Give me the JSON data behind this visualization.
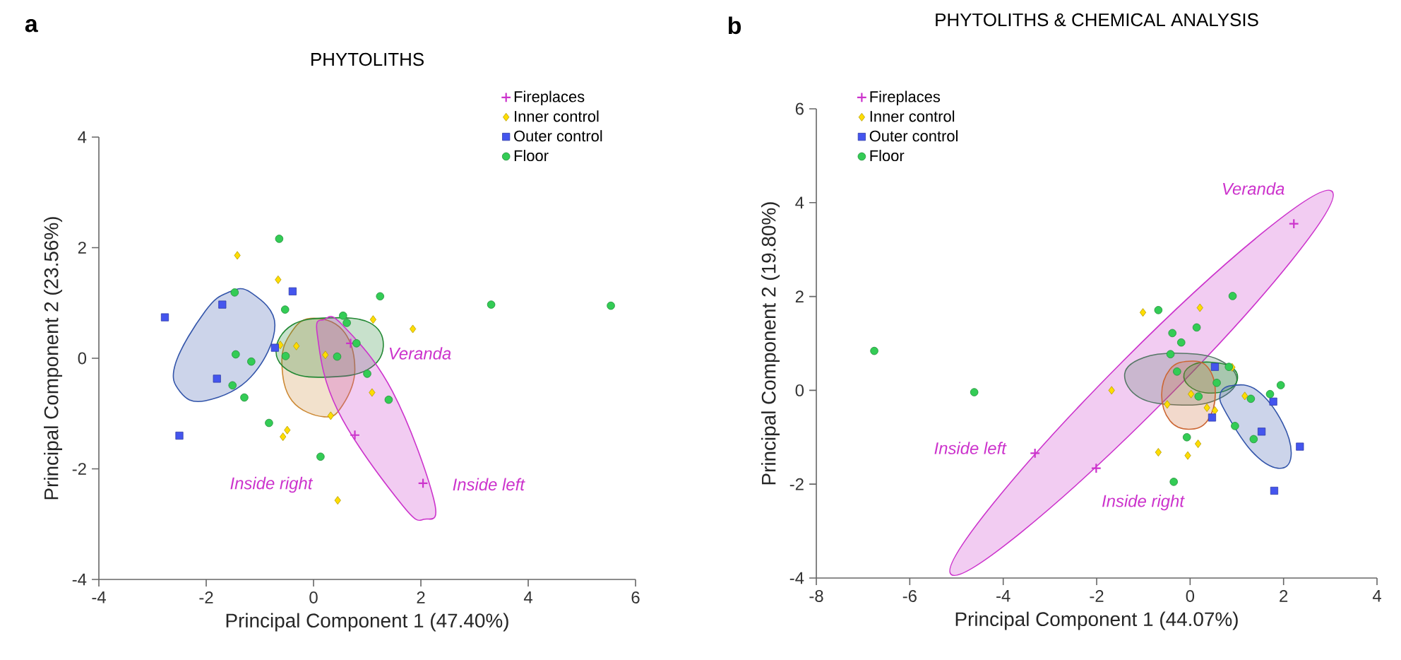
{
  "chart_data": [
    {
      "type": "scatter",
      "title": "PHYTOLITHS",
      "xlabel": "Principal Component 1  (47.40%)",
      "ylabel": "Principal Component 2 (23.56%)",
      "xlim": [
        -4,
        6
      ],
      "ylim": [
        -4,
        4
      ],
      "xticks": [
        -4,
        -2,
        0,
        2,
        4,
        6
      ],
      "yticks": [
        -4,
        -2,
        0,
        2,
        4
      ],
      "legend": "top right",
      "annotations": [
        "a",
        {
          "text": "Veranda",
          "x": 0.69,
          "y": 0.27
        },
        "Inside right",
        {
          "text": "Inside left",
          "x": 2.04,
          "y": -2.26
        }
      ],
      "series": [
        {
          "type": "area",
          "color": "#3355aa",
          "x": [
            -1.17,
            -0.72,
            -1.17,
            -2.02,
            -2.49,
            -2.57,
            -2.02,
            -1.59
          ],
          "values": [
            1.19,
            0.6,
            -0.34,
            -0.77,
            -0.6,
            -0.09,
            0.85,
            1.19
          ]
        },
        {
          "type": "area",
          "color": "#cc8833",
          "x": [
            -0.06,
            0.54,
            0.77,
            0.54,
            0.2,
            -0.4,
            -0.59,
            -0.44
          ],
          "values": [
            0.72,
            0.51,
            -0.21,
            -0.85,
            -1.06,
            -0.77,
            -0.09,
            0.43
          ]
        },
        {
          "type": "area",
          "color": "#228833",
          "x": [
            0.3,
            1.05,
            1.3,
            1.0,
            0.28,
            -0.4,
            -0.7,
            -0.4
          ],
          "values": [
            0.73,
            0.64,
            0.21,
            -0.21,
            -0.34,
            -0.26,
            0.13,
            0.6
          ]
        },
        {
          "type": "area",
          "color": "#cc33cc",
          "x": [
            0.2,
            0.54,
            1.47,
            2.24,
            2.07,
            1.64,
            0.45,
            0.07
          ],
          "values": [
            0.7,
            0.6,
            -0.6,
            -2.55,
            -2.91,
            -2.64,
            -0.94,
            0.43
          ]
        },
        {
          "name": "Fireplaces",
          "marker": "cross",
          "color": "#cc33cc",
          "x": [
            0.69,
            0.77,
            2.04
          ],
          "values": [
            0.27,
            -1.39,
            -2.26
          ]
        },
        {
          "name": "Inner control",
          "marker": "diamond",
          "color": "#ffdd00",
          "x": [
            -1.42,
            -0.66,
            1.11,
            1.85,
            -0.32,
            0.22,
            1.09,
            0.32,
            -0.49,
            -0.57,
            0.45,
            -0.62
          ],
          "values": [
            1.86,
            1.42,
            0.7,
            0.53,
            0.22,
            0.06,
            -0.62,
            -1.04,
            -1.3,
            -1.42,
            -2.57,
            0.24
          ]
        },
        {
          "name": "Outer control",
          "marker": "square",
          "color": "#4455ee",
          "x": [
            -2.77,
            -1.7,
            -0.39,
            -0.72,
            -1.8,
            -2.5
          ],
          "values": [
            0.74,
            0.97,
            1.21,
            0.19,
            -0.37,
            -1.4
          ]
        },
        {
          "name": "Floor",
          "marker": "circle",
          "color": "#33cc55",
          "x": [
            -0.64,
            -1.47,
            -0.53,
            1.24,
            3.31,
            5.54,
            0.55,
            0.62,
            0.8,
            0.44,
            -0.52,
            -1.45,
            -1.16,
            -1.51,
            -1.29,
            1.0,
            1.4,
            -0.83,
            0.13
          ],
          "values": [
            2.16,
            1.19,
            0.88,
            1.12,
            0.97,
            0.95,
            0.77,
            0.64,
            0.27,
            0.03,
            0.04,
            0.07,
            -0.06,
            -0.49,
            -0.71,
            -0.28,
            -0.75,
            -1.17,
            -1.78
          ]
        }
      ]
    },
    {
      "type": "scatter",
      "title": "PHYTOLITHS & CHEMICAL ANALYSIS",
      "xlabel": "Principal Component 1  (44.07%)",
      "ylabel": "Principal Component 2 (19.80%)",
      "xlim": [
        -8,
        4
      ],
      "ylim": [
        -4,
        6
      ],
      "xticks": [
        -8,
        -6,
        -4,
        -2,
        0,
        2,
        4
      ],
      "yticks": [
        -4,
        -2,
        0,
        2,
        4,
        6
      ],
      "legend": "top left",
      "annotations": [
        "b",
        {
          "text": "Veranda",
          "x": 2.22,
          "y": 3.55
        },
        {
          "text": "Inside left",
          "x": -3.32,
          "y": -1.34
        },
        {
          "text": "Inside right",
          "x": -2.01,
          "y": -1.66
        }
      ],
      "series": [
        {
          "type": "area",
          "color": "#cc33cc",
          "x": [
            3.04,
            2.15,
            -0.6,
            -3.62,
            -5.12,
            -4.22,
            -1.47,
            1.54
          ],
          "values": [
            4.24,
            2.74,
            -0.27,
            -3.03,
            -3.92,
            -2.42,
            0.59,
            3.35
          ]
        },
        {
          "type": "area",
          "color": "#557766",
          "x": [
            -0.2,
            0.62,
            1.0,
            0.52,
            -0.28,
            -1.09,
            -1.4,
            -0.99
          ],
          "values": [
            0.79,
            0.65,
            0.2,
            -0.22,
            -0.31,
            -0.15,
            0.35,
            0.7
          ]
        },
        {
          "type": "area",
          "color": "#228833",
          "x": [
            0.42,
            0.88,
            1.01,
            0.78,
            0.32,
            -0.03,
            -0.13,
            0.07
          ],
          "values": [
            0.6,
            0.5,
            0.22,
            0.0,
            -0.05,
            0.1,
            0.35,
            0.55
          ]
        },
        {
          "type": "area",
          "color": "#cc6633",
          "x": [
            -0.03,
            0.37,
            0.54,
            0.37,
            -0.03,
            -0.43,
            -0.61,
            -0.43
          ],
          "values": [
            0.62,
            0.5,
            -0.05,
            -0.65,
            -0.83,
            -0.65,
            -0.1,
            0.45
          ]
        },
        {
          "type": "area",
          "color": "#3355aa",
          "x": [
            0.88,
            1.43,
            1.98,
            2.16,
            1.88,
            1.33,
            0.78,
            0.64
          ],
          "values": [
            0.1,
            0.0,
            -0.7,
            -1.41,
            -1.66,
            -1.31,
            -0.5,
            -0.1
          ]
        },
        {
          "name": "Fireplaces",
          "marker": "cross",
          "color": "#cc33cc",
          "x": [
            2.22,
            -3.32,
            -2.01
          ],
          "values": [
            3.55,
            -1.34,
            -1.66
          ]
        },
        {
          "name": "Inner control",
          "marker": "diamond",
          "color": "#ffdd00",
          "x": [
            -1.01,
            0.21,
            -1.68,
            0.9,
            0.02,
            1.17,
            -0.49,
            0.36,
            0.53,
            -0.68,
            0.17,
            -0.05
          ],
          "values": [
            1.66,
            1.76,
            0.0,
            0.49,
            -0.08,
            -0.12,
            -0.3,
            -0.37,
            -0.43,
            -1.32,
            -1.14,
            -1.39
          ]
        },
        {
          "name": "Outer control",
          "marker": "square",
          "color": "#4455ee",
          "x": [
            0.53,
            1.78,
            1.53,
            2.35,
            1.8,
            0.47
          ],
          "values": [
            0.5,
            -0.24,
            -0.88,
            -1.2,
            -2.14,
            -0.58
          ]
        },
        {
          "name": "Floor",
          "marker": "circle",
          "color": "#33cc55",
          "x": [
            -6.76,
            -4.62,
            -0.68,
            0.91,
            -0.38,
            0.14,
            -0.19,
            -0.42,
            -0.28,
            0.83,
            0.57,
            0.18,
            1.71,
            1.94,
            1.3,
            0.96,
            1.36,
            -0.07,
            -0.35
          ],
          "values": [
            0.84,
            -0.04,
            1.71,
            2.01,
            1.22,
            1.34,
            1.02,
            0.77,
            0.4,
            0.5,
            0.16,
            -0.13,
            -0.08,
            0.11,
            -0.18,
            -0.76,
            -1.04,
            -1.0,
            -1.95
          ]
        }
      ]
    }
  ]
}
